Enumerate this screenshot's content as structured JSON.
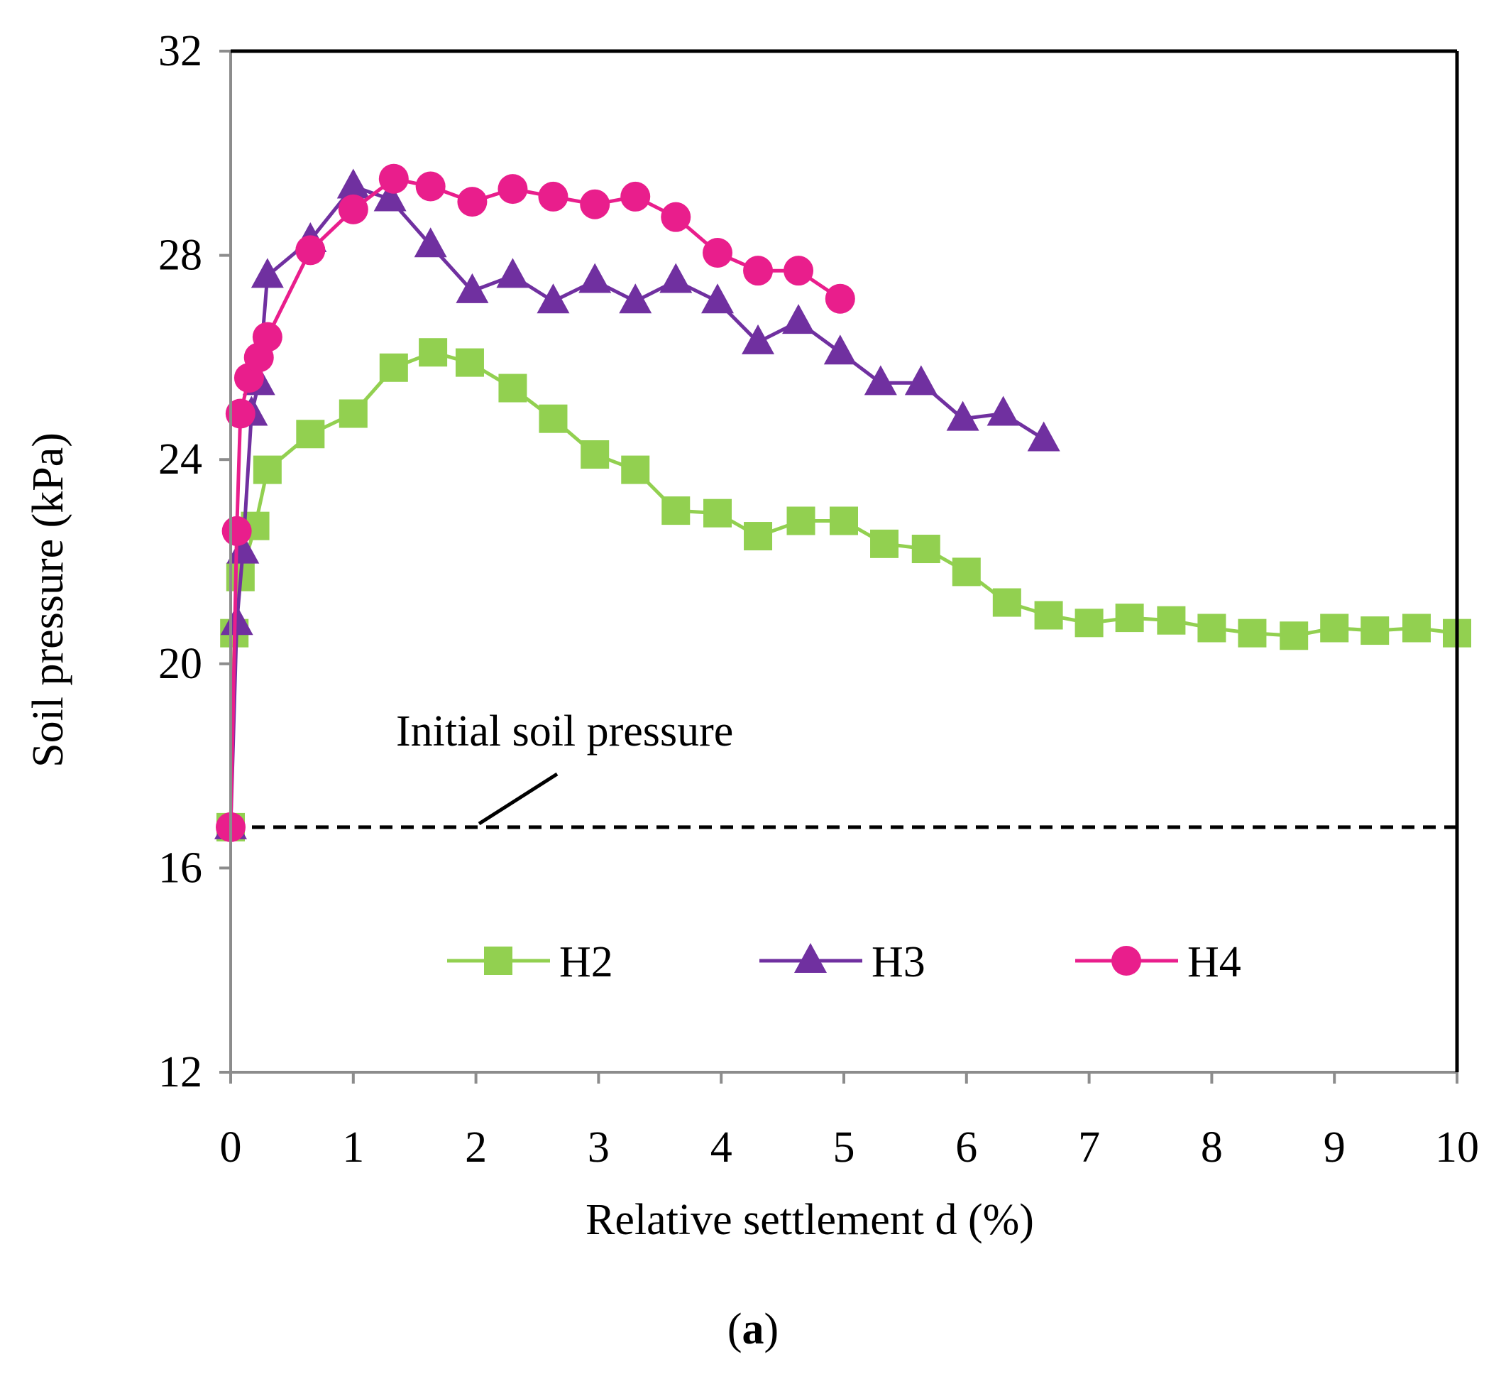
{
  "chart_data": {
    "type": "line",
    "title": "",
    "xlabel": "Relative settlement d (%)",
    "ylabel": "Soil pressure (kPa)",
    "xlim": [
      0,
      10
    ],
    "ylim": [
      12,
      32
    ],
    "xticks": [
      0,
      1,
      2,
      3,
      4,
      5,
      6,
      7,
      8,
      9,
      10
    ],
    "yticks": [
      12,
      16,
      20,
      24,
      28,
      32
    ],
    "grid": false,
    "legend_position": "lower-center",
    "reference_line": {
      "y": 16.8,
      "label": "Initial soil pressure",
      "style": "dashed"
    },
    "caption": {
      "open": "(",
      "letter": "a",
      "close": ")"
    },
    "series": [
      {
        "name": "H2",
        "color": "#92D050",
        "marker": "square",
        "x": [
          0,
          0.03,
          0.08,
          0.2,
          0.3,
          0.65,
          1.0,
          1.33,
          1.65,
          1.95,
          2.3,
          2.63,
          2.97,
          3.3,
          3.63,
          3.97,
          4.3,
          4.65,
          5.0,
          5.33,
          5.67,
          6.0,
          6.33,
          6.67,
          7.0,
          7.33,
          7.67,
          8.0,
          8.33,
          8.67,
          9.0,
          9.33,
          9.67,
          10.0
        ],
        "y": [
          16.8,
          20.6,
          21.7,
          22.7,
          23.8,
          24.5,
          24.9,
          25.8,
          26.1,
          25.9,
          25.4,
          24.8,
          24.1,
          23.8,
          23.0,
          22.95,
          22.5,
          22.8,
          22.8,
          22.35,
          22.25,
          21.8,
          21.2,
          20.95,
          20.8,
          20.9,
          20.85,
          20.7,
          20.6,
          20.55,
          20.7,
          20.65,
          20.7,
          20.6
        ]
      },
      {
        "name": "H3",
        "color": "#7030A0",
        "marker": "triangle",
        "x": [
          0,
          0.05,
          0.1,
          0.17,
          0.23,
          0.3,
          0.65,
          1.0,
          1.3,
          1.63,
          1.97,
          2.3,
          2.63,
          2.97,
          3.3,
          3.63,
          3.97,
          4.3,
          4.63,
          4.97,
          5.3,
          5.63,
          5.97,
          6.3,
          6.63
        ],
        "y": [
          16.8,
          20.8,
          22.2,
          24.9,
          25.5,
          27.6,
          28.3,
          29.35,
          29.1,
          28.2,
          27.3,
          27.6,
          27.1,
          27.5,
          27.1,
          27.5,
          27.1,
          26.3,
          26.7,
          26.1,
          25.5,
          25.5,
          24.8,
          24.9,
          24.4
        ]
      },
      {
        "name": "H4",
        "color": "#E91E8C",
        "marker": "circle",
        "x": [
          0,
          0.05,
          0.08,
          0.15,
          0.23,
          0.3,
          0.65,
          1.0,
          1.33,
          1.63,
          1.97,
          2.3,
          2.63,
          2.97,
          3.3,
          3.63,
          3.97,
          4.3,
          4.63,
          4.97
        ],
        "y": [
          16.8,
          22.6,
          24.9,
          25.6,
          26.0,
          26.4,
          28.1,
          28.9,
          29.5,
          29.35,
          29.05,
          29.3,
          29.15,
          29.0,
          29.15,
          28.75,
          28.05,
          27.7,
          27.7,
          27.15
        ]
      }
    ]
  }
}
